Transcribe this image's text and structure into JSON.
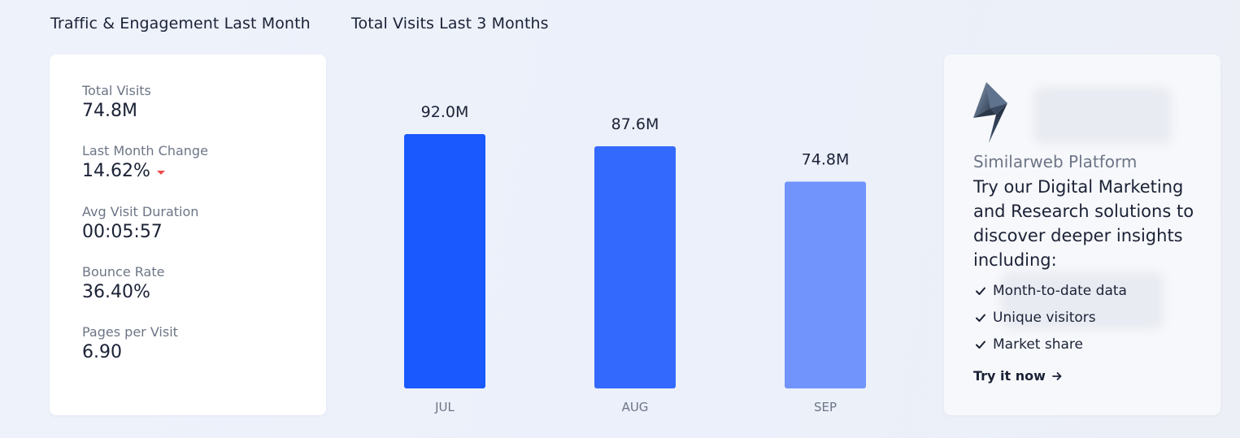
{
  "sections": {
    "traffic_title": "Traffic & Engagement Last Month",
    "visits_title": "Total Visits Last 3 Months"
  },
  "metrics": [
    {
      "label": "Total Visits",
      "value": "74.8M"
    },
    {
      "label": "Last Month Change",
      "value": "14.62%",
      "trend": "down"
    },
    {
      "label": "Avg Visit Duration",
      "value": "00:05:57"
    },
    {
      "label": "Bounce Rate",
      "value": "36.40%"
    },
    {
      "label": "Pages per Visit",
      "value": "6.90"
    }
  ],
  "chart_data": {
    "type": "bar",
    "title": "Total Visits Last 3 Months",
    "categories": [
      "JUL",
      "AUG",
      "SEP"
    ],
    "values": [
      92.0,
      87.6,
      74.8
    ],
    "value_labels": [
      "92.0M",
      "87.6M",
      "74.8M"
    ],
    "unit": "M",
    "bar_colors": [
      "#1a59fe",
      "#3369fd",
      "#7094fc"
    ],
    "ylim": [
      0,
      92.0
    ],
    "grid": false,
    "xlabel": "",
    "ylabel": ""
  },
  "promo": {
    "logo_icon": "similarweb-bolt-icon",
    "platform_name": "Similarweb Platform",
    "heading": "Try our Digital Marketing and Research solutions to discover deeper insights including:",
    "features": [
      "Month-to-date data",
      "Unique visitors",
      "Market share"
    ],
    "cta": "Try it now",
    "cta_icon": "arrow-right-icon"
  },
  "colors": {
    "text_primary": "#1b2236",
    "text_secondary": "#6d7586",
    "trend_down": "#ef4a4a"
  }
}
